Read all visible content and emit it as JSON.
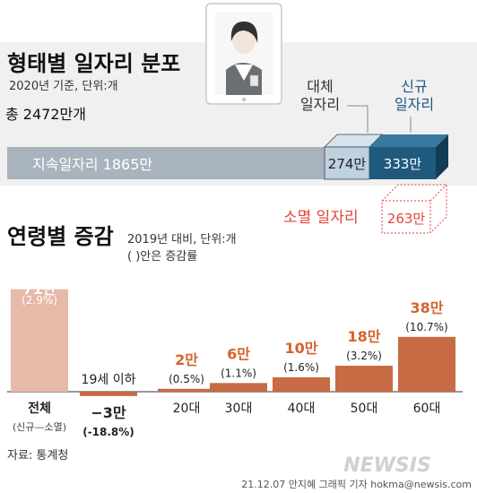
{
  "top": {
    "title": "형태별 일자리 분포",
    "subtitle": "2020년 기준, 단위:개",
    "total_label": "총 2472만개",
    "callout_replace": [
      "대체",
      "일자리"
    ],
    "callout_new": [
      "신규",
      "일자리"
    ],
    "extinct_label": "소멸 일자리",
    "bar_text_sustain": "지속일자리   1865만"
  },
  "bottom": {
    "title": "연령별 증감",
    "subtitle": "2019년 대비, 단위:개",
    "note": "( )안은 증감률",
    "total_sub": "(신규—소멸)"
  },
  "footer": {
    "source": "자료: 통계청",
    "credit": "21.12.07 안지혜 그래픽 기자 hokma@newsis.com",
    "watermark": "NEWSIS"
  },
  "colors": {
    "gray_bar": "#a9b3bd",
    "replace_box": "#bfd0de",
    "new_box": "#1f5a7e",
    "accent_red": "#e0463a",
    "bar_brown": "#c86a44",
    "total_bar": "#e6b9a8",
    "label_orange": "#d4632e"
  },
  "chart_data": [
    {
      "type": "bar",
      "orientation": "horizontal-stacked",
      "unit": "만",
      "series": [
        {
          "name": "지속일자리",
          "value": 1865,
          "label": "1865만"
        },
        {
          "name": "대체 일자리",
          "value": 274,
          "label": "274만"
        },
        {
          "name": "신규 일자리",
          "value": 333,
          "label": "333만"
        },
        {
          "name": "소멸 일자리",
          "value": 263,
          "label": "263만"
        }
      ],
      "total": 2472
    },
    {
      "type": "bar",
      "categories": [
        "전체",
        "19세 이하",
        "20대",
        "30대",
        "40대",
        "50대",
        "60대"
      ],
      "values": [
        71,
        -3,
        2,
        6,
        10,
        18,
        38
      ],
      "value_labels": [
        "71만",
        "−3만",
        "2만",
        "6만",
        "10만",
        "18만",
        "38만"
      ],
      "rate_labels": [
        "(2.9%)",
        "(-18.8%)",
        "(0.5%)",
        "(1.1%)",
        "(1.6%)",
        "(3.2%)",
        "(10.7%)"
      ]
    }
  ]
}
